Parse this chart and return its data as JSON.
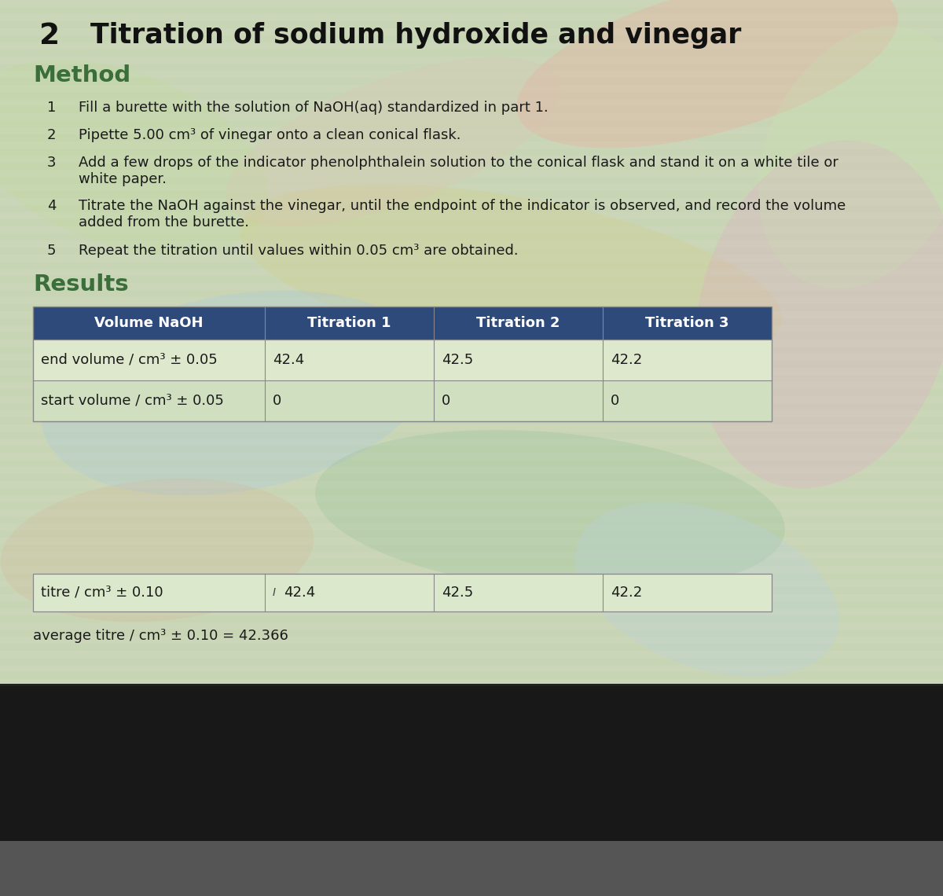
{
  "section_number": "2",
  "title": "Titration of sodium hydroxide and vinegar",
  "method_label": "Method",
  "steps": [
    {
      "num": "1",
      "text": "Fill a burette with the solution of NaOH(aq) standardized in part 1."
    },
    {
      "num": "2",
      "text": "Pipette 5.00 cm³ of vinegar onto a clean conical flask."
    },
    {
      "num": "3",
      "text": "Add a few drops of the indicator phenolphthalein solution to the conical flask and stand it on a white tile or\nwhite paper."
    },
    {
      "num": "4",
      "text": "Titrate the NaOH against the vinegar, until the endpoint of the indicator is observed, and record the volume\nadded from the burette."
    },
    {
      "num": "5",
      "text": "Repeat the titration until values within 0.05 cm³ are obtained."
    }
  ],
  "results_label": "Results",
  "table_header": [
    "Volume NaOH",
    "Titration 1",
    "Titration 2",
    "Titration 3"
  ],
  "table_header_bg": "#2d4a7a",
  "table_header_fg": "#ffffff",
  "table_rows": [
    [
      "end volume / cm³ ± 0.05",
      "42.4",
      "42.5",
      "42.2"
    ],
    [
      "start volume / cm³ ± 0.05",
      "0",
      "0",
      "0"
    ]
  ],
  "titre_row": [
    "titre / cm³ ± 0.10",
    "42.4",
    "42.5",
    "42.2"
  ],
  "average_text": "average titre / cm³ ± 0.10 = 42.366",
  "bg_color_top": "#c8d5b8",
  "bg_color_main": "#c5d2b0",
  "text_color": "#1a1a1a",
  "heading_color": "#3a6e3a",
  "title_color": "#111111",
  "bottom_bg": "#111111",
  "row_bg_light": "#dde8cc",
  "row_bg_dark": "#d0dfc0",
  "table_border_color": "#888888"
}
